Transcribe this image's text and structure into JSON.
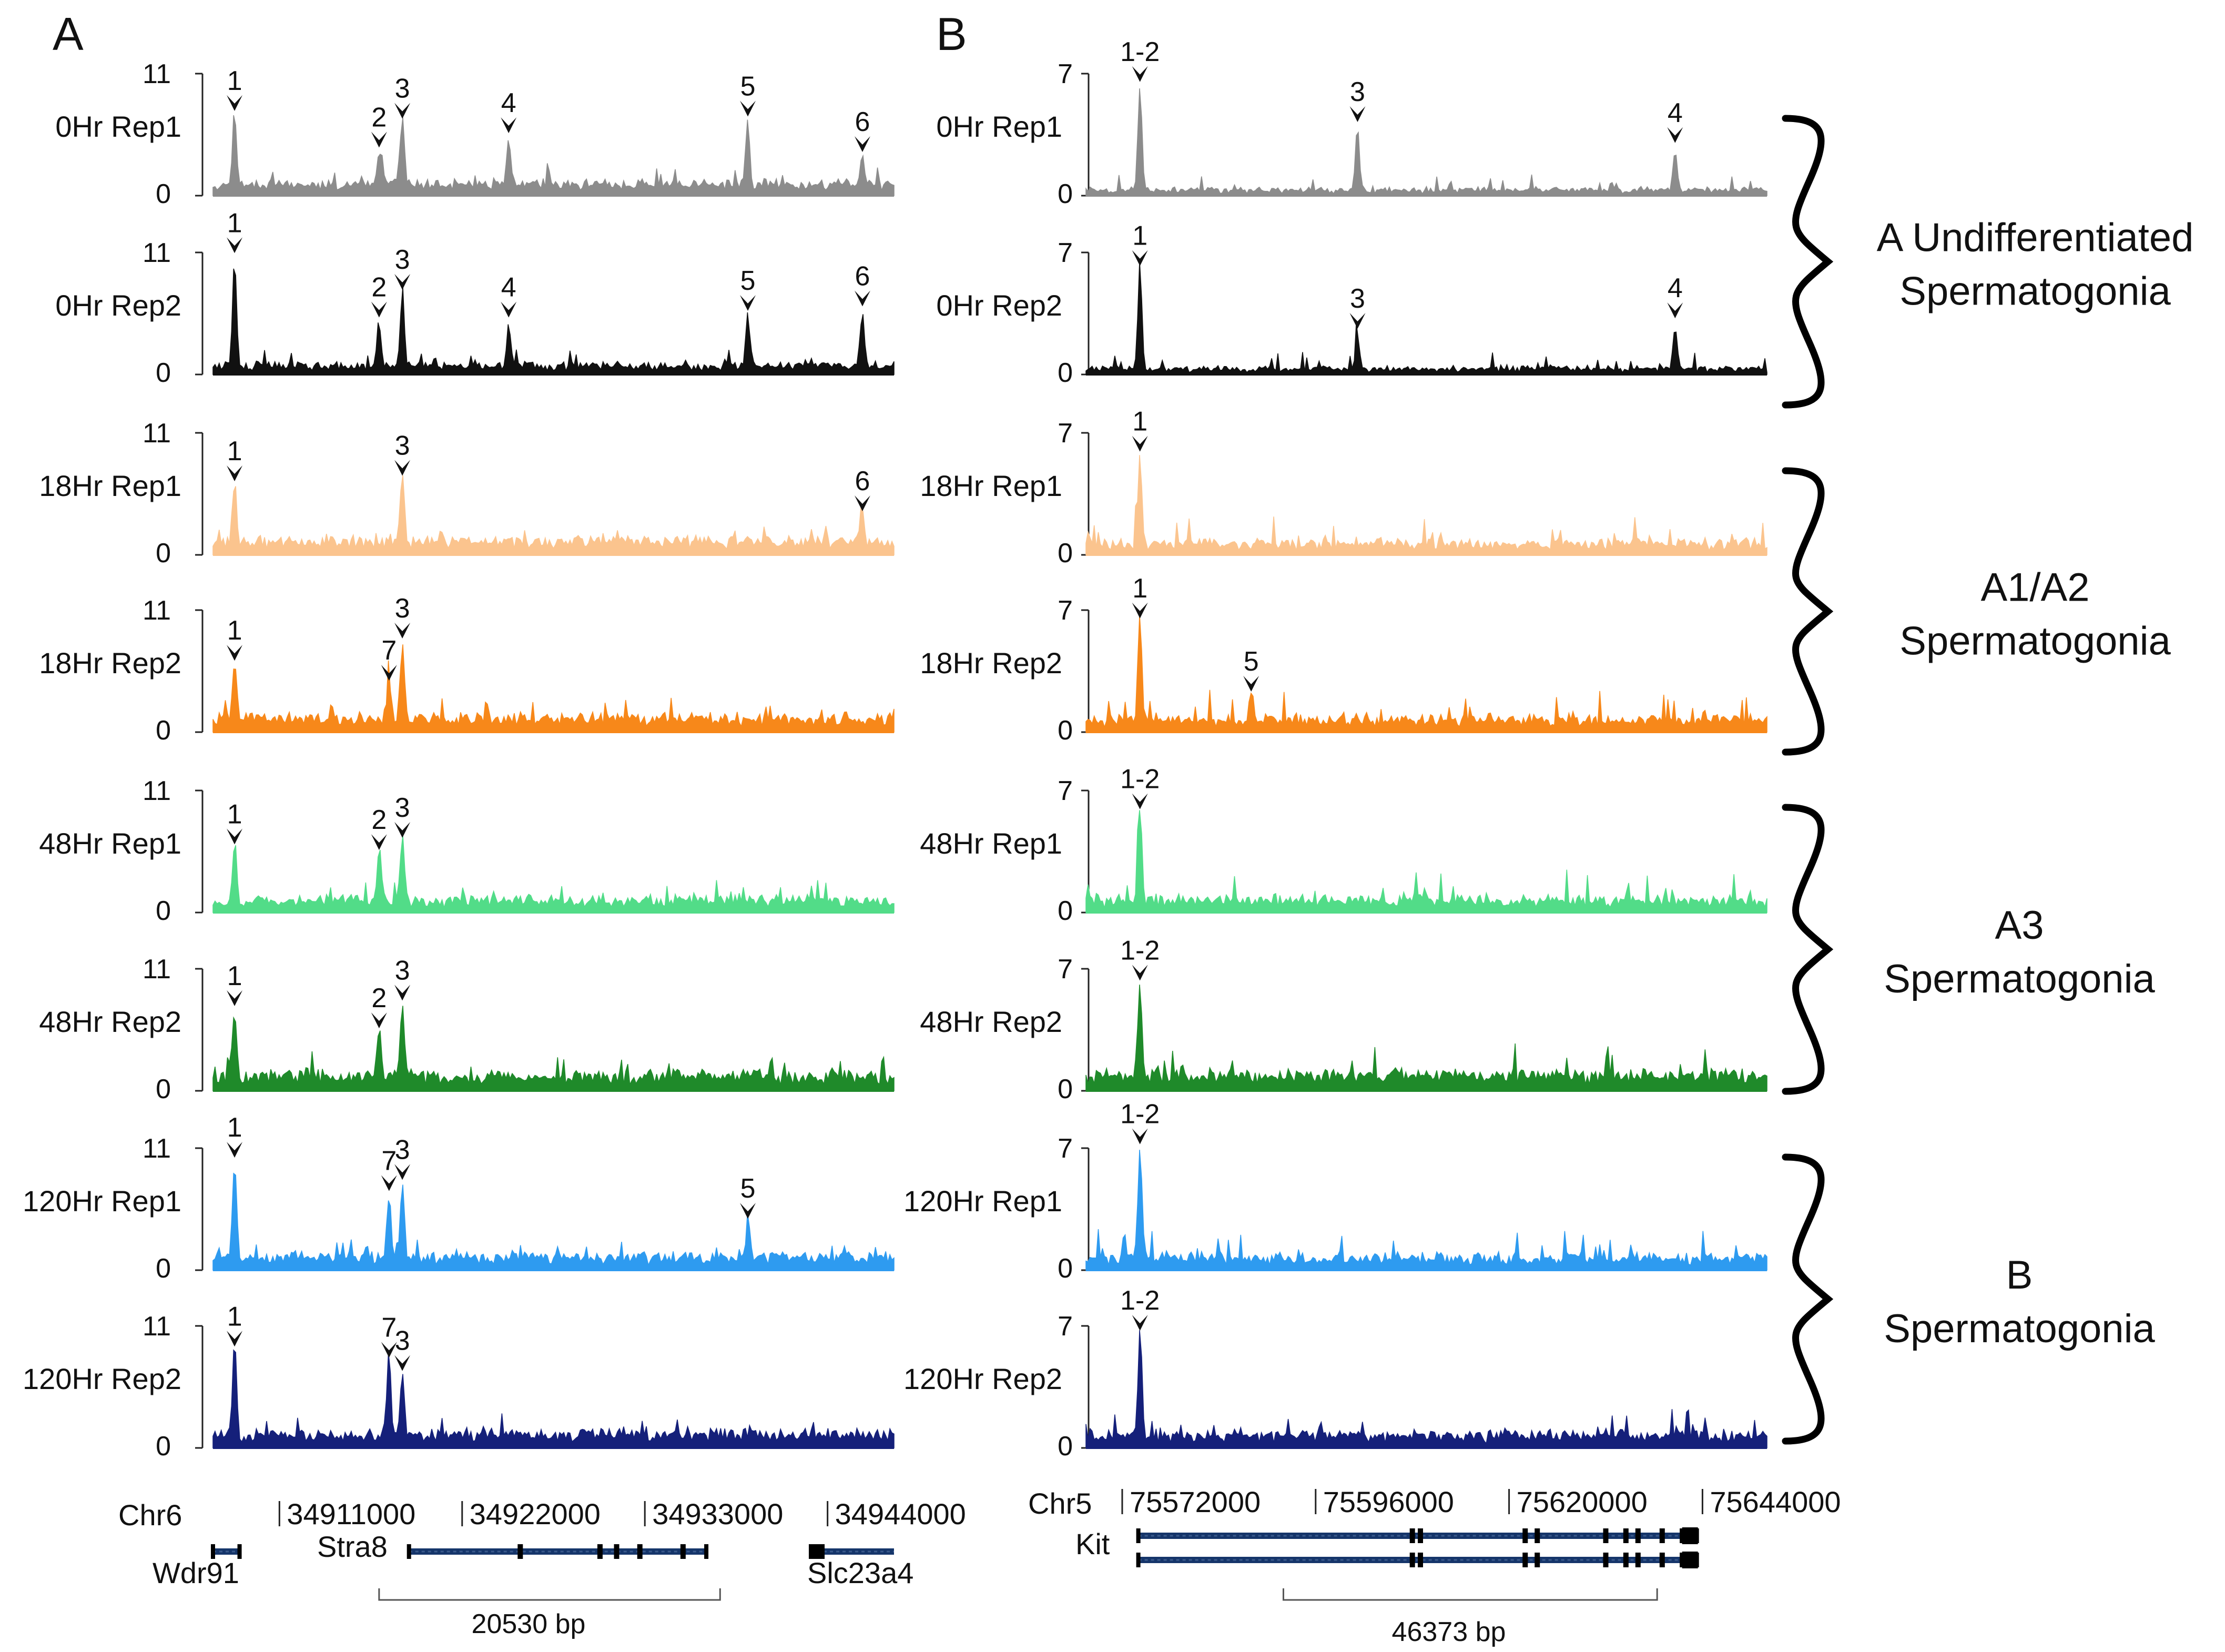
{
  "chart_data": [
    {
      "type": "area",
      "panel": "A",
      "ylim": [
        0,
        11
      ],
      "y_tick_labels": [
        "0",
        "11"
      ],
      "x_range": [
        34907000,
        34948000
      ],
      "chromosome": "Chr6",
      "coordinates": [
        "34911000",
        "34922000",
        "34933000",
        "34944000"
      ],
      "coordinate_values": [
        34911000,
        34922000,
        34933000,
        34944000
      ],
      "genes": [
        {
          "name": "Wdr91",
          "start": 34907000,
          "end": 34908600
        },
        {
          "name": "Stra8",
          "start": 34918800,
          "end": 34936700,
          "exons": [
            34925500,
            34930300,
            34931300,
            34932700,
            34935300
          ]
        },
        {
          "name": "Slc23a4",
          "start": 34943000,
          "end": 34948000
        }
      ],
      "scale_bar": {
        "label": "20530 bp",
        "start": 34917000,
        "end": 34937530
      },
      "peak_positions": {
        "1": 34908300,
        "2": 34917000,
        "3": 34918400,
        "4": 34924800,
        "5": 34939200,
        "6": 34946100,
        "7": 34917600
      },
      "tracks": [
        {
          "name": "0Hr Rep1",
          "color": "#8c8c8c",
          "baseline": 1.2,
          "noise": 0.4,
          "seed": 11,
          "peaks": [
            {
              "id": "1",
              "height": 6.5
            },
            {
              "id": "2",
              "height": 3.2
            },
            {
              "id": "3",
              "height": 5.8
            },
            {
              "id": "4",
              "height": 4.5
            },
            {
              "id": "5",
              "height": 6.0
            },
            {
              "id": "6",
              "height": 2.8
            }
          ],
          "labels": [
            "1",
            "2",
            "3",
            "4",
            "5",
            "6"
          ]
        },
        {
          "name": "0Hr Rep2",
          "color": "#111111",
          "baseline": 0.9,
          "noise": 0.35,
          "seed": 23,
          "peaks": [
            {
              "id": "1",
              "height": 9.8
            },
            {
              "id": "2",
              "height": 4.0
            },
            {
              "id": "3",
              "height": 6.5
            },
            {
              "id": "4",
              "height": 4.0
            },
            {
              "id": "5",
              "height": 4.6
            },
            {
              "id": "6",
              "height": 5.0
            }
          ],
          "labels": [
            "1",
            "2",
            "3",
            "4",
            "5",
            "6"
          ]
        },
        {
          "name": "18Hr Rep1",
          "color": "#fbc48e",
          "baseline": 1.4,
          "noise": 0.45,
          "seed": 37,
          "peaks": [
            {
              "id": "1",
              "height": 5.5
            },
            {
              "id": "3",
              "height": 6.0
            },
            {
              "id": "6",
              "height": 2.8
            }
          ],
          "labels": [
            "1",
            "3",
            "6"
          ]
        },
        {
          "name": "18Hr Rep2",
          "color": "#f7881a",
          "baseline": 1.4,
          "noise": 0.5,
          "seed": 41,
          "peaks": [
            {
              "id": "1",
              "height": 5.3
            },
            {
              "id": "7",
              "height": 3.5
            },
            {
              "id": "3",
              "height": 7.3
            }
          ],
          "labels": [
            "1",
            "7",
            "3"
          ]
        },
        {
          "name": "48Hr Rep1",
          "color": "#52dc88",
          "baseline": 1.2,
          "noise": 0.5,
          "seed": 53,
          "peaks": [
            {
              "id": "1",
              "height": 5.0
            },
            {
              "id": "2",
              "height": 4.5
            },
            {
              "id": "3",
              "height": 5.6
            }
          ],
          "labels": [
            "1",
            "2",
            "3"
          ]
        },
        {
          "name": "48Hr Rep2",
          "color": "#1f8a2a",
          "baseline": 1.5,
          "noise": 0.55,
          "seed": 67,
          "peaks": [
            {
              "id": "1",
              "height": 6.5
            },
            {
              "id": "2",
              "height": 4.5
            },
            {
              "id": "3",
              "height": 7.0
            }
          ],
          "labels": [
            "1",
            "2",
            "3"
          ]
        },
        {
          "name": "120Hr Rep1",
          "color": "#2e9bf0",
          "baseline": 1.3,
          "noise": 0.45,
          "seed": 71,
          "peaks": [
            {
              "id": "1",
              "height": 9.0
            },
            {
              "id": "3",
              "height": 7.0
            },
            {
              "id": "7",
              "height": 6.0
            },
            {
              "id": "5",
              "height": 3.5
            }
          ],
          "labels": [
            "1",
            "3",
            "7",
            "5"
          ]
        },
        {
          "name": "120Hr Rep2",
          "color": "#15207a",
          "baseline": 1.4,
          "noise": 0.5,
          "seed": 83,
          "peaks": [
            {
              "id": "1",
              "height": 8.0
            },
            {
              "id": "3",
              "height": 5.8
            },
            {
              "id": "7",
              "height": 7.0
            }
          ],
          "labels": [
            "1",
            "3",
            "7"
          ]
        }
      ]
    },
    {
      "type": "area",
      "panel": "B",
      "ylim": [
        0,
        7
      ],
      "y_tick_labels": [
        "0",
        "7"
      ],
      "x_range": [
        75567500,
        75652000
      ],
      "chromosome": "Chr5",
      "coordinates": [
        "75572000",
        "75596000",
        "75620000",
        "75644000"
      ],
      "coordinate_values": [
        75572000,
        75596000,
        75620000,
        75644000
      ],
      "genes": [
        {
          "name": "Kit",
          "start": 75574000,
          "end": 75643300,
          "exons": [
            75608000,
            75609000,
            75622000,
            75623500,
            75632000,
            75634500,
            75636000,
            75639000,
            75641500
          ]
        }
      ],
      "scale_bar": {
        "label": "46373 bp",
        "start": 75592000,
        "end": 75638373
      },
      "peak_positions": {
        "1": 75574200,
        "1-2": 75574200,
        "3": 75601200,
        "4": 75640600,
        "5": 75588000
      },
      "tracks": [
        {
          "name": "0Hr Rep1",
          "color": "#8c8c8c",
          "baseline": 0.3,
          "noise": 0.25,
          "seed": 101,
          "peaks": [
            {
              "id": "1-2",
              "height": 5.8
            },
            {
              "id": "3",
              "height": 3.5
            },
            {
              "id": "4",
              "height": 2.3
            }
          ],
          "labels": [
            "1-2",
            "3",
            "4"
          ]
        },
        {
          "name": "0Hr Rep2",
          "color": "#111111",
          "baseline": 0.3,
          "noise": 0.25,
          "seed": 113,
          "peaks": [
            {
              "id": "1",
              "height": 5.5
            },
            {
              "id": "3",
              "height": 1.9
            },
            {
              "id": "4",
              "height": 2.5
            }
          ],
          "labels": [
            "1",
            "3",
            "4"
          ]
        },
        {
          "name": "18Hr Rep1",
          "color": "#fbc48e",
          "baseline": 0.6,
          "noise": 0.45,
          "seed": 127,
          "peaks": [
            {
              "id": "1",
              "height": 5.2
            }
          ],
          "labels": [
            "1"
          ]
        },
        {
          "name": "18Hr Rep2",
          "color": "#f7881a",
          "baseline": 0.7,
          "noise": 0.45,
          "seed": 131,
          "peaks": [
            {
              "id": "1",
              "height": 5.8
            },
            {
              "id": "5",
              "height": 1.6
            }
          ],
          "labels": [
            "1",
            "5"
          ]
        },
        {
          "name": "48Hr Rep1",
          "color": "#52dc88",
          "baseline": 0.7,
          "noise": 0.45,
          "seed": 139,
          "peaks": [
            {
              "id": "1-2",
              "height": 5.2
            }
          ],
          "labels": [
            "1-2"
          ]
        },
        {
          "name": "48Hr Rep2",
          "color": "#1f8a2a",
          "baseline": 0.9,
          "noise": 0.5,
          "seed": 149,
          "peaks": [
            {
              "id": "1-2",
              "height": 5.6
            }
          ],
          "labels": [
            "1-2"
          ]
        },
        {
          "name": "120Hr Rep1",
          "color": "#2e9bf0",
          "baseline": 0.7,
          "noise": 0.45,
          "seed": 157,
          "peaks": [
            {
              "id": "1-2",
              "height": 6.5
            }
          ],
          "labels": [
            "1-2"
          ]
        },
        {
          "name": "120Hr Rep2",
          "color": "#15207a",
          "baseline": 0.7,
          "noise": 0.45,
          "seed": 163,
          "peaks": [
            {
              "id": "1-2",
              "height": 6.0
            }
          ],
          "labels": [
            "1-2"
          ]
        }
      ]
    }
  ],
  "groups": [
    {
      "lines": [
        "A Undifferentiated",
        "Spermatogonia"
      ]
    },
    {
      "lines": [
        "A1/A2",
        "Spermatogonia"
      ]
    },
    {
      "lines": [
        "A3",
        "Spermatogonia"
      ]
    },
    {
      "lines": [
        "B",
        "Spermatogonia"
      ]
    }
  ],
  "colors": {
    "text": "#111111",
    "gene": "#15356a",
    "gene_fill": "#3b5a8c",
    "axis": "#222222"
  }
}
